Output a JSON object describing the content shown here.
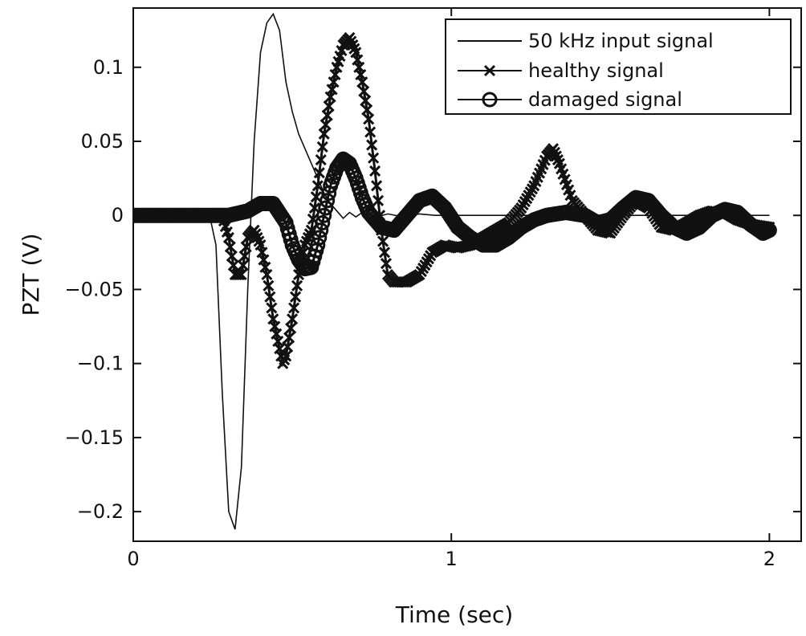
{
  "chart_data": {
    "type": "line",
    "title": "",
    "xlabel": "Time (sec)",
    "ylabel": "PZT (V)",
    "xlim": [
      0,
      2.1
    ],
    "ylim": [
      -0.22,
      0.14
    ],
    "grid": false,
    "legend_position": "top-right",
    "x_ticks": [
      {
        "value": 0,
        "label": "0"
      },
      {
        "value": 1,
        "label": "1"
      },
      {
        "value": 2,
        "label": "2"
      }
    ],
    "y_ticks": [
      {
        "value": 0.1,
        "label": "0.1"
      },
      {
        "value": 0.05,
        "label": "0.05"
      },
      {
        "value": 0,
        "label": "0"
      },
      {
        "value": -0.05,
        "label": "−0.05"
      },
      {
        "value": -0.1,
        "label": "−0.1"
      },
      {
        "value": -0.15,
        "label": "−0.15"
      },
      {
        "value": -0.2,
        "label": "−0.2"
      }
    ],
    "series": [
      {
        "name": "50 kHz input signal",
        "marker": "none",
        "color": "#111111",
        "points": [
          [
            0.0,
            0.0
          ],
          [
            0.24,
            0.0
          ],
          [
            0.26,
            -0.02
          ],
          [
            0.28,
            -0.12
          ],
          [
            0.3,
            -0.2
          ],
          [
            0.32,
            -0.212
          ],
          [
            0.34,
            -0.17
          ],
          [
            0.36,
            -0.05
          ],
          [
            0.38,
            0.05
          ],
          [
            0.4,
            0.11
          ],
          [
            0.42,
            0.13
          ],
          [
            0.44,
            0.136
          ],
          [
            0.46,
            0.125
          ],
          [
            0.48,
            0.09
          ],
          [
            0.5,
            0.07
          ],
          [
            0.52,
            0.055
          ],
          [
            0.54,
            0.045
          ],
          [
            0.56,
            0.035
          ],
          [
            0.58,
            0.025
          ],
          [
            0.6,
            0.015
          ],
          [
            0.62,
            0.008
          ],
          [
            0.64,
            0.003
          ],
          [
            0.66,
            -0.002
          ],
          [
            0.68,
            0.002
          ],
          [
            0.7,
            -0.001
          ],
          [
            0.72,
            0.002
          ],
          [
            0.75,
            -0.002
          ],
          [
            0.8,
            0.001
          ],
          [
            0.85,
            -0.001
          ],
          [
            0.9,
            0.001
          ],
          [
            0.95,
            0.0
          ],
          [
            1.0,
            0.0
          ],
          [
            1.2,
            0.0
          ],
          [
            1.5,
            0.0
          ],
          [
            2.0,
            0.0
          ]
        ]
      },
      {
        "name": "healthy signal",
        "marker": "x",
        "color": "#111111",
        "points": [
          [
            0.0,
            0.0
          ],
          [
            0.1,
            0.0
          ],
          [
            0.2,
            0.0
          ],
          [
            0.28,
            0.0
          ],
          [
            0.3,
            -0.015
          ],
          [
            0.32,
            -0.04
          ],
          [
            0.34,
            -0.04
          ],
          [
            0.36,
            -0.015
          ],
          [
            0.38,
            -0.01
          ],
          [
            0.4,
            -0.02
          ],
          [
            0.42,
            -0.04
          ],
          [
            0.44,
            -0.07
          ],
          [
            0.46,
            -0.09
          ],
          [
            0.47,
            -0.1
          ],
          [
            0.48,
            -0.095
          ],
          [
            0.5,
            -0.07
          ],
          [
            0.52,
            -0.04
          ],
          [
            0.54,
            -0.02
          ],
          [
            0.56,
            -0.01
          ],
          [
            0.58,
            0.02
          ],
          [
            0.6,
            0.055
          ],
          [
            0.62,
            0.08
          ],
          [
            0.64,
            0.1
          ],
          [
            0.66,
            0.115
          ],
          [
            0.68,
            0.12
          ],
          [
            0.7,
            0.11
          ],
          [
            0.72,
            0.09
          ],
          [
            0.74,
            0.065
          ],
          [
            0.76,
            0.03
          ],
          [
            0.78,
            -0.01
          ],
          [
            0.8,
            -0.04
          ],
          [
            0.82,
            -0.045
          ],
          [
            0.86,
            -0.045
          ],
          [
            0.9,
            -0.04
          ],
          [
            0.94,
            -0.025
          ],
          [
            0.98,
            -0.02
          ],
          [
            1.02,
            -0.022
          ],
          [
            1.06,
            -0.02
          ],
          [
            1.1,
            -0.015
          ],
          [
            1.14,
            -0.01
          ],
          [
            1.18,
            -0.005
          ],
          [
            1.22,
            0.005
          ],
          [
            1.26,
            0.02
          ],
          [
            1.3,
            0.04
          ],
          [
            1.32,
            0.045
          ],
          [
            1.34,
            0.035
          ],
          [
            1.38,
            0.01
          ],
          [
            1.42,
            0.0
          ],
          [
            1.46,
            -0.01
          ],
          [
            1.5,
            -0.012
          ],
          [
            1.54,
            0.0
          ],
          [
            1.58,
            0.01
          ],
          [
            1.62,
            0.005
          ],
          [
            1.66,
            -0.008
          ],
          [
            1.7,
            -0.01
          ],
          [
            1.74,
            -0.005
          ],
          [
            1.78,
            0.0
          ],
          [
            1.82,
            0.003
          ],
          [
            1.86,
            0.002
          ],
          [
            1.9,
            -0.003
          ],
          [
            1.94,
            -0.006
          ],
          [
            2.0,
            -0.008
          ]
        ]
      },
      {
        "name": "damaged signal",
        "marker": "o",
        "color": "#111111",
        "points": [
          [
            0.0,
            0.0
          ],
          [
            0.1,
            0.0
          ],
          [
            0.2,
            0.0
          ],
          [
            0.3,
            0.0
          ],
          [
            0.36,
            0.003
          ],
          [
            0.4,
            0.008
          ],
          [
            0.44,
            0.008
          ],
          [
            0.48,
            -0.005
          ],
          [
            0.5,
            -0.02
          ],
          [
            0.52,
            -0.03
          ],
          [
            0.54,
            -0.036
          ],
          [
            0.56,
            -0.035
          ],
          [
            0.58,
            -0.02
          ],
          [
            0.6,
            0.0
          ],
          [
            0.62,
            0.02
          ],
          [
            0.64,
            0.032
          ],
          [
            0.66,
            0.038
          ],
          [
            0.68,
            0.035
          ],
          [
            0.7,
            0.025
          ],
          [
            0.72,
            0.012
          ],
          [
            0.74,
            0.002
          ],
          [
            0.78,
            -0.008
          ],
          [
            0.82,
            -0.01
          ],
          [
            0.86,
            0.0
          ],
          [
            0.9,
            0.01
          ],
          [
            0.94,
            0.013
          ],
          [
            0.98,
            0.005
          ],
          [
            1.02,
            -0.008
          ],
          [
            1.06,
            -0.015
          ],
          [
            1.1,
            -0.02
          ],
          [
            1.14,
            -0.02
          ],
          [
            1.18,
            -0.015
          ],
          [
            1.22,
            -0.008
          ],
          [
            1.26,
            -0.003
          ],
          [
            1.3,
            0.0
          ],
          [
            1.36,
            0.002
          ],
          [
            1.42,
            0.0
          ],
          [
            1.46,
            -0.005
          ],
          [
            1.5,
            -0.003
          ],
          [
            1.54,
            0.005
          ],
          [
            1.58,
            0.012
          ],
          [
            1.62,
            0.01
          ],
          [
            1.66,
            0.0
          ],
          [
            1.7,
            -0.008
          ],
          [
            1.74,
            -0.012
          ],
          [
            1.78,
            -0.008
          ],
          [
            1.82,
            0.0
          ],
          [
            1.86,
            0.004
          ],
          [
            1.9,
            0.002
          ],
          [
            1.94,
            -0.006
          ],
          [
            1.98,
            -0.012
          ],
          [
            2.0,
            -0.01
          ]
        ]
      }
    ]
  }
}
